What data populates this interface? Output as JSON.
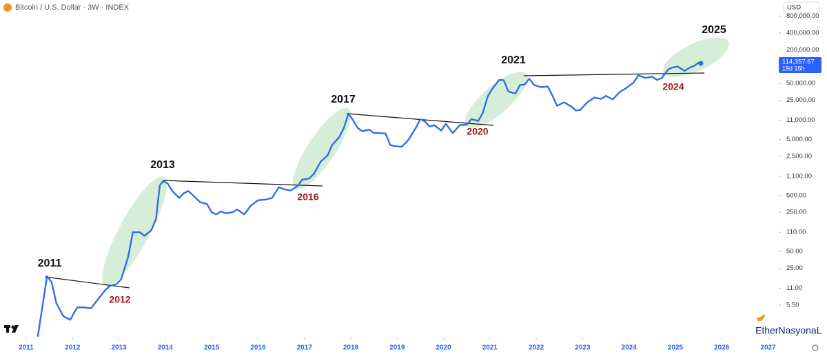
{
  "chart_data": {
    "type": "line",
    "title": "Bitcoin / U.S. Dollar · 3W · INDEX",
    "currency": "USD",
    "log_scale": true,
    "color": "#2f6fe4",
    "x": [
      2011.25,
      2011.45,
      2011.55,
      2011.65,
      2011.8,
      2011.95,
      2012.1,
      2012.25,
      2012.4,
      2012.55,
      2012.7,
      2012.8,
      2012.95,
      2013.05,
      2013.2,
      2013.3,
      2013.45,
      2013.55,
      2013.7,
      2013.8,
      2013.88,
      2013.95,
      2014.05,
      2014.15,
      2014.3,
      2014.4,
      2014.5,
      2014.6,
      2014.75,
      2014.9,
      2015.0,
      2015.1,
      2015.2,
      2015.3,
      2015.45,
      2015.55,
      2015.7,
      2015.85,
      2016.0,
      2016.15,
      2016.3,
      2016.45,
      2016.55,
      2016.7,
      2016.85,
      2016.95,
      2017.1,
      2017.2,
      2017.35,
      2017.5,
      2017.6,
      2017.75,
      2017.85,
      2017.95,
      2018.05,
      2018.15,
      2018.25,
      2018.4,
      2018.5,
      2018.6,
      2018.75,
      2018.85,
      2018.95,
      2019.1,
      2019.25,
      2019.4,
      2019.5,
      2019.6,
      2019.7,
      2019.8,
      2019.95,
      2020.05,
      2020.2,
      2020.35,
      2020.5,
      2020.6,
      2020.75,
      2020.85,
      2020.95,
      2021.05,
      2021.2,
      2021.3,
      2021.4,
      2021.55,
      2021.65,
      2021.75,
      2021.85,
      2021.95,
      2022.1,
      2022.25,
      2022.35,
      2022.45,
      2022.6,
      2022.75,
      2022.85,
      2022.95,
      2023.1,
      2023.25,
      2023.4,
      2023.5,
      2023.65,
      2023.8,
      2023.95,
      2024.1,
      2024.2,
      2024.35,
      2024.5,
      2024.6,
      2024.7,
      2024.85,
      2024.95,
      2025.05,
      2025.2,
      2025.3,
      2025.42,
      2025.5,
      2025.55
    ],
    "values": [
      1.5,
      18,
      14,
      6,
      3.5,
      3.0,
      5,
      5.0,
      4.8,
      7,
      10,
      12,
      13,
      16,
      40,
      110,
      110,
      95,
      120,
      190,
      750,
      900,
      820,
      600,
      450,
      550,
      600,
      500,
      380,
      350,
      250,
      230,
      260,
      240,
      250,
      280,
      230,
      330,
      410,
      420,
      450,
      700,
      650,
      610,
      730,
      950,
      1000,
      1200,
      2000,
      2600,
      4000,
      5500,
      8000,
      14500,
      11000,
      8000,
      7000,
      7500,
      6500,
      6500,
      6400,
      4000,
      3800,
      3700,
      5000,
      8000,
      11500,
      10500,
      8500,
      9000,
      7200,
      9500,
      6500,
      9000,
      9200,
      11500,
      10700,
      15000,
      29000,
      40000,
      58000,
      57000,
      36000,
      33000,
      47000,
      48000,
      61000,
      47000,
      43000,
      44000,
      30000,
      20000,
      23000,
      19500,
      16500,
      16800,
      23000,
      28000,
      26500,
      30000,
      26000,
      35000,
      42000,
      52000,
      70000,
      63000,
      66000,
      58000,
      62000,
      90000,
      97000,
      100000,
      84000,
      95000,
      105000,
      118000,
      114357.67
    ],
    "price_label": {
      "value": 114357.67,
      "label": "114,357.67"
    },
    "countdown": "19d 15h",
    "xlim": [
      2010.435,
      2027.23
    ],
    "xticks": [
      2011,
      2012,
      2013,
      2014,
      2015,
      2016,
      2017,
      2018,
      2019,
      2020,
      2021,
      2022,
      2023,
      2024,
      2025,
      2026,
      2027
    ],
    "ylim": [
      1.45,
      1550000
    ],
    "yticks": [
      {
        "value": 5.5,
        "label": "5.50"
      },
      {
        "value": 11,
        "label": "11.00"
      },
      {
        "value": 25,
        "label": "25.00"
      },
      {
        "value": 50,
        "label": "50.00"
      },
      {
        "value": 110,
        "label": "110.00"
      },
      {
        "value": 250,
        "label": "250.00"
      },
      {
        "value": 500,
        "label": "500.00"
      },
      {
        "value": 1100,
        "label": "1,100.00"
      },
      {
        "value": 2500,
        "label": "2,500.00"
      },
      {
        "value": 5000,
        "label": "5,000.00"
      },
      {
        "value": 11000,
        "label": "11,000.00"
      },
      {
        "value": 25000,
        "label": "25,000.00"
      },
      {
        "value": 50000,
        "label": "50,000.00"
      },
      {
        "value": 200000,
        "label": "200,000.00"
      },
      {
        "value": 400000,
        "label": "400,000.00"
      },
      {
        "value": 800000,
        "label": "800,000.00"
      }
    ],
    "annotations": [
      "2011",
      "2012",
      "2013",
      "2016",
      "2017",
      "2020",
      "2021",
      "2024",
      "2025"
    ],
    "watermark": "EtherNasyonaL"
  }
}
